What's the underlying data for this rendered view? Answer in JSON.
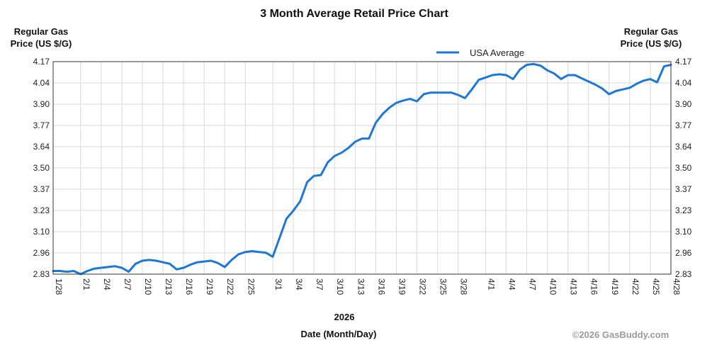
{
  "chart_data": {
    "type": "line",
    "title": "3 Month Average Retail Price Chart",
    "ylabel_left": [
      "Regular Gas",
      "Price (US $/G)"
    ],
    "ylabel_right": [
      "Regular Gas",
      "Price (US $/G)"
    ],
    "year_label": "2026",
    "xlabel": "Date (Month/Day)",
    "ylim": [
      2.83,
      4.17
    ],
    "y_ticks": [
      "2.83",
      "2.96",
      "3.10",
      "3.23",
      "3.37",
      "3.50",
      "3.64",
      "3.77",
      "3.90",
      "4.04",
      "4.17"
    ],
    "x_ticks": [
      "1/28",
      "2/1",
      "2/4",
      "2/7",
      "2/10",
      "2/13",
      "2/16",
      "2/19",
      "2/22",
      "2/25",
      "3/1",
      "3/4",
      "3/7",
      "3/10",
      "3/13",
      "3/16",
      "3/19",
      "3/22",
      "3/25",
      "3/28",
      "4/1",
      "4/4",
      "4/7",
      "4/10",
      "4/13",
      "4/16",
      "4/19",
      "4/22",
      "4/25",
      "4/28"
    ],
    "grid": true,
    "legend_position": "top",
    "series": [
      {
        "name": "USA Average",
        "color": "#1f77d4",
        "x": [
          "1/28",
          "1/29",
          "1/30",
          "1/31",
          "2/1",
          "2/2",
          "2/3",
          "2/4",
          "2/5",
          "2/6",
          "2/7",
          "2/8",
          "2/9",
          "2/10",
          "2/11",
          "2/12",
          "2/13",
          "2/14",
          "2/15",
          "2/16",
          "2/17",
          "2/18",
          "2/19",
          "2/20",
          "2/21",
          "2/22",
          "2/23",
          "2/24",
          "2/25",
          "2/26",
          "2/27",
          "2/28",
          "3/1",
          "3/2",
          "3/3",
          "3/4",
          "3/5",
          "3/6",
          "3/7",
          "3/8",
          "3/9",
          "3/10",
          "3/11",
          "3/12",
          "3/13",
          "3/14",
          "3/15",
          "3/16",
          "3/17",
          "3/18",
          "3/19",
          "3/20",
          "3/21",
          "3/22",
          "3/23",
          "3/24",
          "3/25",
          "3/26",
          "3/27",
          "3/28",
          "3/29",
          "3/30",
          "3/31",
          "4/1",
          "4/2",
          "4/3",
          "4/4",
          "4/5",
          "4/6",
          "4/7",
          "4/8",
          "4/9",
          "4/10",
          "4/11",
          "4/12",
          "4/13",
          "4/14",
          "4/15",
          "4/16",
          "4/17",
          "4/18",
          "4/19",
          "4/20",
          "4/21",
          "4/22",
          "4/23",
          "4/24",
          "4/25",
          "4/26",
          "4/27",
          "4/28"
        ],
        "values": [
          2.85,
          2.85,
          2.845,
          2.85,
          2.83,
          2.85,
          2.865,
          2.87,
          2.875,
          2.88,
          2.87,
          2.845,
          2.895,
          2.915,
          2.92,
          2.915,
          2.905,
          2.895,
          2.86,
          2.87,
          2.89,
          2.905,
          2.91,
          2.915,
          2.9,
          2.875,
          2.92,
          2.955,
          2.97,
          2.975,
          2.97,
          2.965,
          2.94,
          3.06,
          3.18,
          3.23,
          3.29,
          3.41,
          3.45,
          3.455,
          3.535,
          3.575,
          3.595,
          3.625,
          3.665,
          3.685,
          3.685,
          3.785,
          3.84,
          3.88,
          3.91,
          3.925,
          3.935,
          3.92,
          3.965,
          3.975,
          3.975,
          3.975,
          3.975,
          3.96,
          3.94,
          3.995,
          4.055,
          4.07,
          4.085,
          4.09,
          4.085,
          4.06,
          4.12,
          4.15,
          4.155,
          4.145,
          4.115,
          4.095,
          4.06,
          4.085,
          4.085,
          4.065,
          4.045,
          4.025,
          4.0,
          3.965,
          3.985,
          3.995,
          4.005,
          4.03,
          4.05,
          4.06,
          4.04,
          4.14,
          4.15
        ]
      }
    ]
  },
  "credit": "©2026 GasBuddy.com"
}
